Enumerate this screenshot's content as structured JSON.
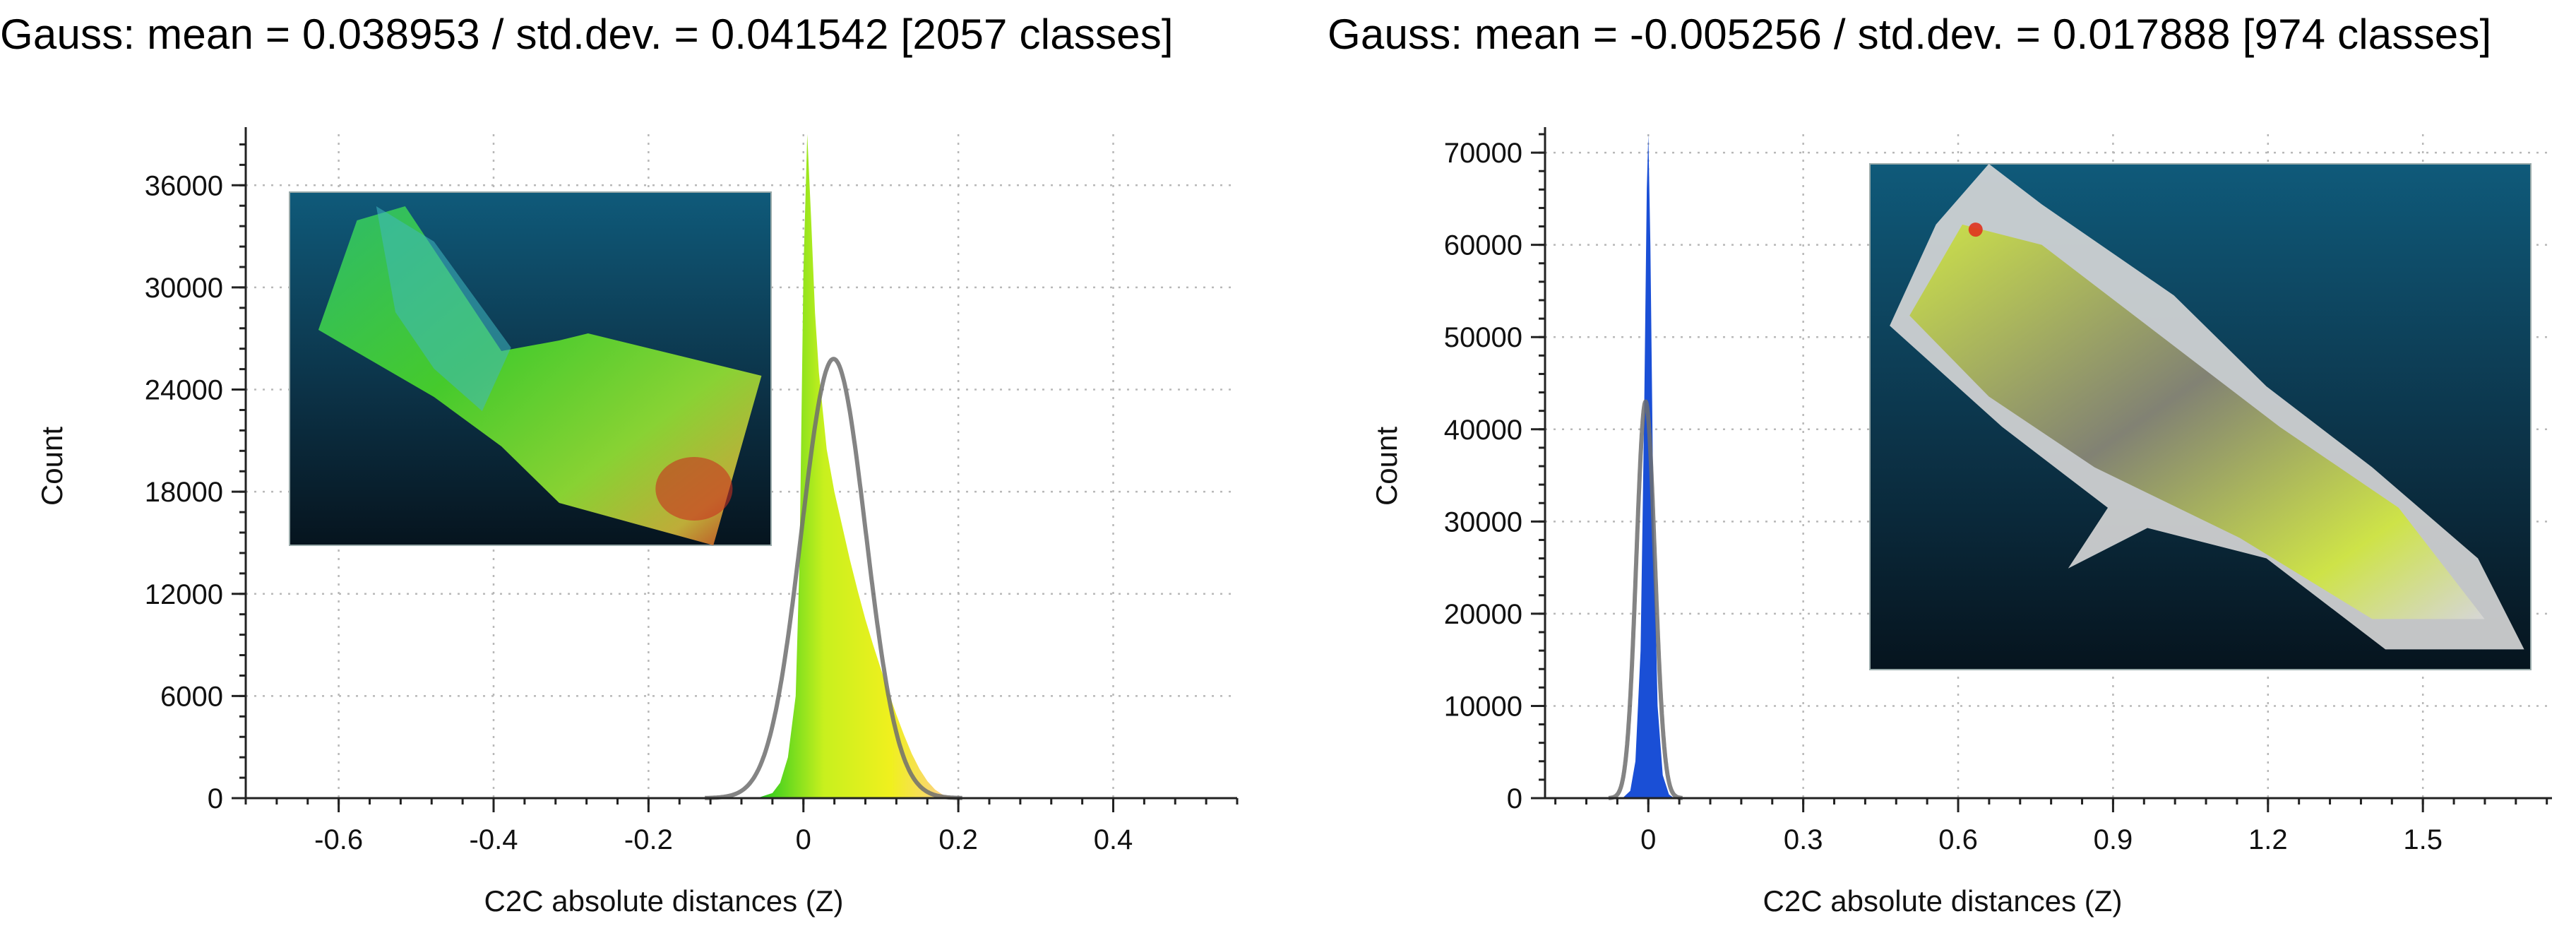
{
  "chart_data": [
    {
      "type": "histogram",
      "title": "Gauss: mean = 0.038953 / std.dev. = 0.041542 [2057 classes]",
      "xlabel": "C2C absolute distances (Z)",
      "ylabel": "Count",
      "xlim": [
        -0.72,
        0.56
      ],
      "ylim": [
        0,
        39000
      ],
      "xticks": [
        "-0.6",
        "-0.4",
        "-0.2",
        "0",
        "0.2",
        "0.4"
      ],
      "xtick_values": [
        -0.6,
        -0.4,
        -0.2,
        0,
        0.2,
        0.4
      ],
      "yticks": [
        "0",
        "6000",
        "12000",
        "18000",
        "24000",
        "30000",
        "36000"
      ],
      "ytick_values": [
        0,
        6000,
        12000,
        18000,
        24000,
        30000,
        36000
      ],
      "grid": true,
      "gauss": {
        "mean": 0.038953,
        "std": 0.041542,
        "peak": 25800
      },
      "histogram": {
        "x": [
          -0.06,
          -0.04,
          -0.03,
          -0.02,
          -0.01,
          -0.005,
          0.0,
          0.005,
          0.01,
          0.015,
          0.02,
          0.03,
          0.04,
          0.05,
          0.06,
          0.07,
          0.08,
          0.09,
          0.1,
          0.11,
          0.12,
          0.13,
          0.14,
          0.15,
          0.16,
          0.17,
          0.18,
          0.2
        ],
        "y": [
          0,
          300,
          900,
          2400,
          6000,
          14000,
          31000,
          39000,
          34000,
          28500,
          25000,
          20500,
          18000,
          16000,
          14000,
          12200,
          10500,
          9000,
          7600,
          6200,
          4900,
          3700,
          2600,
          1700,
          1000,
          500,
          200,
          0
        ],
        "color_stops": [
          "#1ec81e",
          "#c8f01e",
          "#f0f01e",
          "#ffc8a0"
        ]
      },
      "inset": {
        "colors": [
          "#2fc06a",
          "#48d22b",
          "#8fdb33",
          "#c8b43a",
          "#c8311f",
          "#3fb8c0"
        ]
      }
    },
    {
      "type": "histogram",
      "title": "Gauss: mean = -0.005256 / std.dev. = 0.017888 [974 classes]",
      "xlabel": "C2C absolute distances (Z)",
      "ylabel": "Count",
      "xlim": [
        -0.2,
        1.75
      ],
      "ylim": [
        0,
        72000
      ],
      "xticks": [
        "0",
        "0.3",
        "0.6",
        "0.9",
        "1.2",
        "1.5"
      ],
      "xtick_values": [
        0,
        0.3,
        0.6,
        0.9,
        1.2,
        1.5
      ],
      "yticks": [
        "0",
        "10000",
        "20000",
        "30000",
        "40000",
        "50000",
        "60000",
        "70000"
      ],
      "ytick_values": [
        0,
        10000,
        20000,
        30000,
        40000,
        50000,
        60000,
        70000
      ],
      "grid": true,
      "gauss": {
        "mean": -0.005256,
        "std": 0.017888,
        "peak": 43000
      },
      "histogram": {
        "x": [
          -0.05,
          -0.035,
          -0.025,
          -0.015,
          -0.008,
          -0.003,
          0.0,
          0.004,
          0.01,
          0.018,
          0.028,
          0.04,
          0.05
        ],
        "y": [
          0,
          800,
          4000,
          16000,
          42000,
          66000,
          72000,
          60000,
          30000,
          10000,
          2500,
          400,
          0
        ],
        "color": "#1a4fd6"
      },
      "inset": {
        "colors": [
          "#cfe63a",
          "#7a7a6a",
          "#d8d8d8",
          "#e0321e"
        ]
      }
    }
  ]
}
